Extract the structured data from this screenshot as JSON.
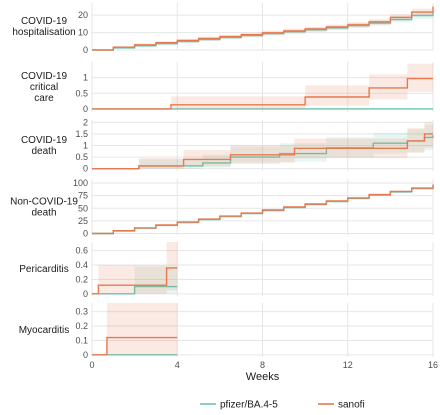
{
  "chart_data": {
    "type": "line",
    "step": true,
    "xlabel": "Weeks",
    "xlim": [
      0,
      16
    ],
    "xticks": [
      0,
      4,
      8,
      12,
      16
    ],
    "grid": true,
    "legend": {
      "position": "bottom",
      "entries": [
        "pfizer/BA.4-5",
        "sanofi"
      ]
    },
    "colors": {
      "pfizer/BA.4-5": "#6cc5b0",
      "sanofi": "#e8794f"
    },
    "panels": [
      {
        "id": "hosp",
        "label": [
          "COVID-19",
          "hospitalisation"
        ],
        "yticks": [
          0,
          10,
          20
        ],
        "ylim": [
          0,
          27
        ],
        "x_end": 16,
        "series": [
          {
            "name": "pfizer/BA.4-5",
            "x": [
              0,
              1,
              2,
              3,
              4,
              5,
              6,
              7,
              8,
              9,
              10,
              11,
              12,
              13,
              14,
              15,
              16
            ],
            "y": [
              0,
              1.2,
              2.4,
              3.6,
              4.8,
              6,
              7.2,
              8.3,
              9.4,
              10.5,
              11.6,
              12.7,
              14,
              15.5,
              17.5,
              19.8,
              22
            ],
            "lower": [
              0,
              0.8,
              1.8,
              2.9,
              4,
              5.1,
              6.2,
              7.2,
              8.2,
              9.3,
              10.3,
              11.3,
              12.5,
              14,
              15.8,
              18,
              20
            ],
            "upper": [
              0,
              1.7,
              3,
              4.3,
              5.6,
              6.9,
              8.2,
              9.4,
              10.6,
              11.7,
              12.9,
              14.1,
              15.5,
              17,
              19.2,
              21.6,
              24
            ]
          },
          {
            "name": "sanofi",
            "x": [
              0,
              1,
              2,
              3,
              4,
              5,
              6,
              7,
              8,
              9,
              10,
              11,
              12,
              13,
              14,
              15,
              16
            ],
            "y": [
              0,
              1.6,
              3,
              4.2,
              5.5,
              6.6,
              7.7,
              8.8,
              9.9,
              11,
              12.1,
              13.2,
              14.5,
              16.2,
              18.8,
              21.8,
              25
            ],
            "lower": [
              0,
              1,
              2.3,
              3.4,
              4.6,
              5.6,
              6.6,
              7.7,
              8.7,
              9.7,
              10.8,
              11.8,
              13,
              14.6,
              17,
              19.8,
              22.8
            ],
            "upper": [
              0,
              2.2,
              3.7,
              5,
              6.4,
              7.6,
              8.8,
              9.9,
              11.1,
              12.3,
              13.4,
              14.6,
              16,
              17.8,
              20.6,
              23.8,
              27
            ]
          }
        ]
      },
      {
        "id": "crit",
        "label": [
          "COVID-19",
          "critical",
          "care"
        ],
        "yticks": [
          0,
          0.5,
          1
        ],
        "ylim": [
          -0.1,
          1.5
        ],
        "x_end": 16,
        "series": [
          {
            "name": "pfizer/BA.4-5",
            "x": [
              0,
              16
            ],
            "y": [
              0,
              0
            ],
            "lower": [
              0,
              0
            ],
            "upper": [
              0,
              0
            ]
          },
          {
            "name": "sanofi",
            "x": [
              0,
              3.7,
              10,
              13,
              14.8,
              16
            ],
            "y": [
              0,
              0.13,
              0.38,
              0.67,
              0.97,
              0.97
            ],
            "lower": [
              0,
              0,
              0.1,
              0.3,
              0.55,
              0.55
            ],
            "upper": [
              0,
              0.4,
              0.75,
              1.1,
              1.45,
              1.45
            ]
          }
        ]
      },
      {
        "id": "death",
        "label": [
          "COVID-19",
          "death"
        ],
        "yticks": [
          0,
          0.5,
          1,
          1.5,
          2
        ],
        "ylim": [
          -0.1,
          2.1
        ],
        "x_end": 16,
        "series": [
          {
            "name": "pfizer/BA.4-5",
            "x": [
              0,
              2.2,
              5.2,
              6.5,
              8.8,
              11,
              13.2,
              14.8,
              15.6,
              16
            ],
            "y": [
              0,
              0.12,
              0.25,
              0.5,
              0.65,
              0.9,
              1.1,
              1.2,
              1.35,
              1.45
            ],
            "lower": [
              0,
              0,
              0.05,
              0.2,
              0.3,
              0.5,
              0.65,
              0.7,
              0.8,
              0.9
            ],
            "upper": [
              0,
              0.4,
              0.6,
              0.95,
              1.1,
              1.35,
              1.55,
              1.7,
              1.9,
              2
            ]
          },
          {
            "name": "sanofi",
            "x": [
              0,
              2.2,
              4.3,
              6.5,
              9.5,
              14.8,
              15.6,
              16
            ],
            "y": [
              0,
              0.12,
              0.4,
              0.6,
              0.88,
              1.2,
              1.5,
              1.5
            ],
            "lower": [
              0,
              0,
              0.1,
              0.25,
              0.45,
              0.7,
              0.9,
              0.9
            ],
            "upper": [
              0,
              0.45,
              0.8,
              1,
              1.3,
              1.75,
              2,
              2
            ]
          }
        ]
      },
      {
        "id": "noncovid",
        "label": [
          "Non-COVID-19",
          "death"
        ],
        "yticks": [
          0,
          25,
          50,
          75,
          100
        ],
        "ylim": [
          -3,
          108
        ],
        "x_end": 16,
        "series": [
          {
            "name": "pfizer/BA.4-5",
            "x": [
              0,
              1,
              2,
              3,
              4,
              5,
              6,
              7,
              8,
              9,
              10,
              11,
              12,
              13,
              14,
              15,
              16
            ],
            "y": [
              0,
              5,
              10.5,
              16,
              21.5,
              27.5,
              33.5,
              39.5,
              45.5,
              51.5,
              57.5,
              63.5,
              69.5,
              76,
              82.5,
              89,
              96
            ],
            "lower": [
              0,
              4.5,
              9.8,
              15.2,
              20.6,
              26.5,
              32.4,
              38.3,
              44.2,
              50.1,
              56,
              62,
              68,
              74.4,
              80.8,
              87.2,
              94
            ],
            "upper": [
              0,
              5.5,
              11.2,
              16.8,
              22.4,
              28.5,
              34.6,
              40.7,
              46.8,
              52.9,
              59,
              65,
              71,
              77.6,
              84.2,
              90.8,
              98
            ]
          },
          {
            "name": "sanofi",
            "x": [
              0,
              1,
              2,
              3,
              4,
              5,
              6,
              7,
              8,
              9,
              10,
              11,
              12,
              13,
              14,
              15,
              16
            ],
            "y": [
              0,
              5.5,
              11,
              16.8,
              22.5,
              28.5,
              34.5,
              40.5,
              46.5,
              52.5,
              58.5,
              64.5,
              70.5,
              77,
              83.5,
              90,
              97
            ],
            "lower": [
              0,
              4.9,
              10.2,
              15.9,
              21.5,
              27.4,
              33.3,
              39.2,
              45.1,
              51,
              57,
              63,
              69,
              75.4,
              81.8,
              88.2,
              95
            ],
            "upper": [
              0,
              6.1,
              11.8,
              17.7,
              23.5,
              29.6,
              35.7,
              41.8,
              47.9,
              54,
              60,
              66,
              72,
              78.6,
              85.2,
              91.8,
              99
            ]
          }
        ]
      },
      {
        "id": "peri",
        "label": [
          "Pericarditis"
        ],
        "yticks": [
          0,
          0.2,
          0.4,
          0.6
        ],
        "ylim": [
          -0.03,
          0.72
        ],
        "x_end": 4,
        "series": [
          {
            "name": "pfizer/BA.4-5",
            "x": [
              0,
              2,
              4
            ],
            "y": [
              0,
              0.1,
              0.1
            ],
            "lower": [
              0,
              0,
              0
            ],
            "upper": [
              0,
              0.38,
              0.38
            ]
          },
          {
            "name": "sanofi",
            "x": [
              0,
              0.3,
              3.5,
              4
            ],
            "y": [
              0,
              0.12,
              0.36,
              0.36
            ],
            "lower": [
              0,
              0,
              0.05,
              0.05
            ],
            "upper": [
              0,
              0.4,
              0.72,
              0.72
            ]
          }
        ]
      },
      {
        "id": "myo",
        "label": [
          "Myocarditis"
        ],
        "yticks": [
          0,
          0.1,
          0.2,
          0.3
        ],
        "ylim": [
          -0.015,
          0.36
        ],
        "x_end": 4,
        "series": [
          {
            "name": "pfizer/BA.4-5",
            "x": [
              0,
              4
            ],
            "y": [
              0,
              0
            ],
            "lower": [
              0,
              0
            ],
            "upper": [
              0,
              0
            ]
          },
          {
            "name": "sanofi",
            "x": [
              0,
              0.7,
              4
            ],
            "y": [
              0,
              0.12,
              0.12
            ],
            "lower": [
              0,
              0,
              0
            ],
            "upper": [
              0,
              0.36,
              0.36
            ]
          }
        ]
      }
    ]
  }
}
